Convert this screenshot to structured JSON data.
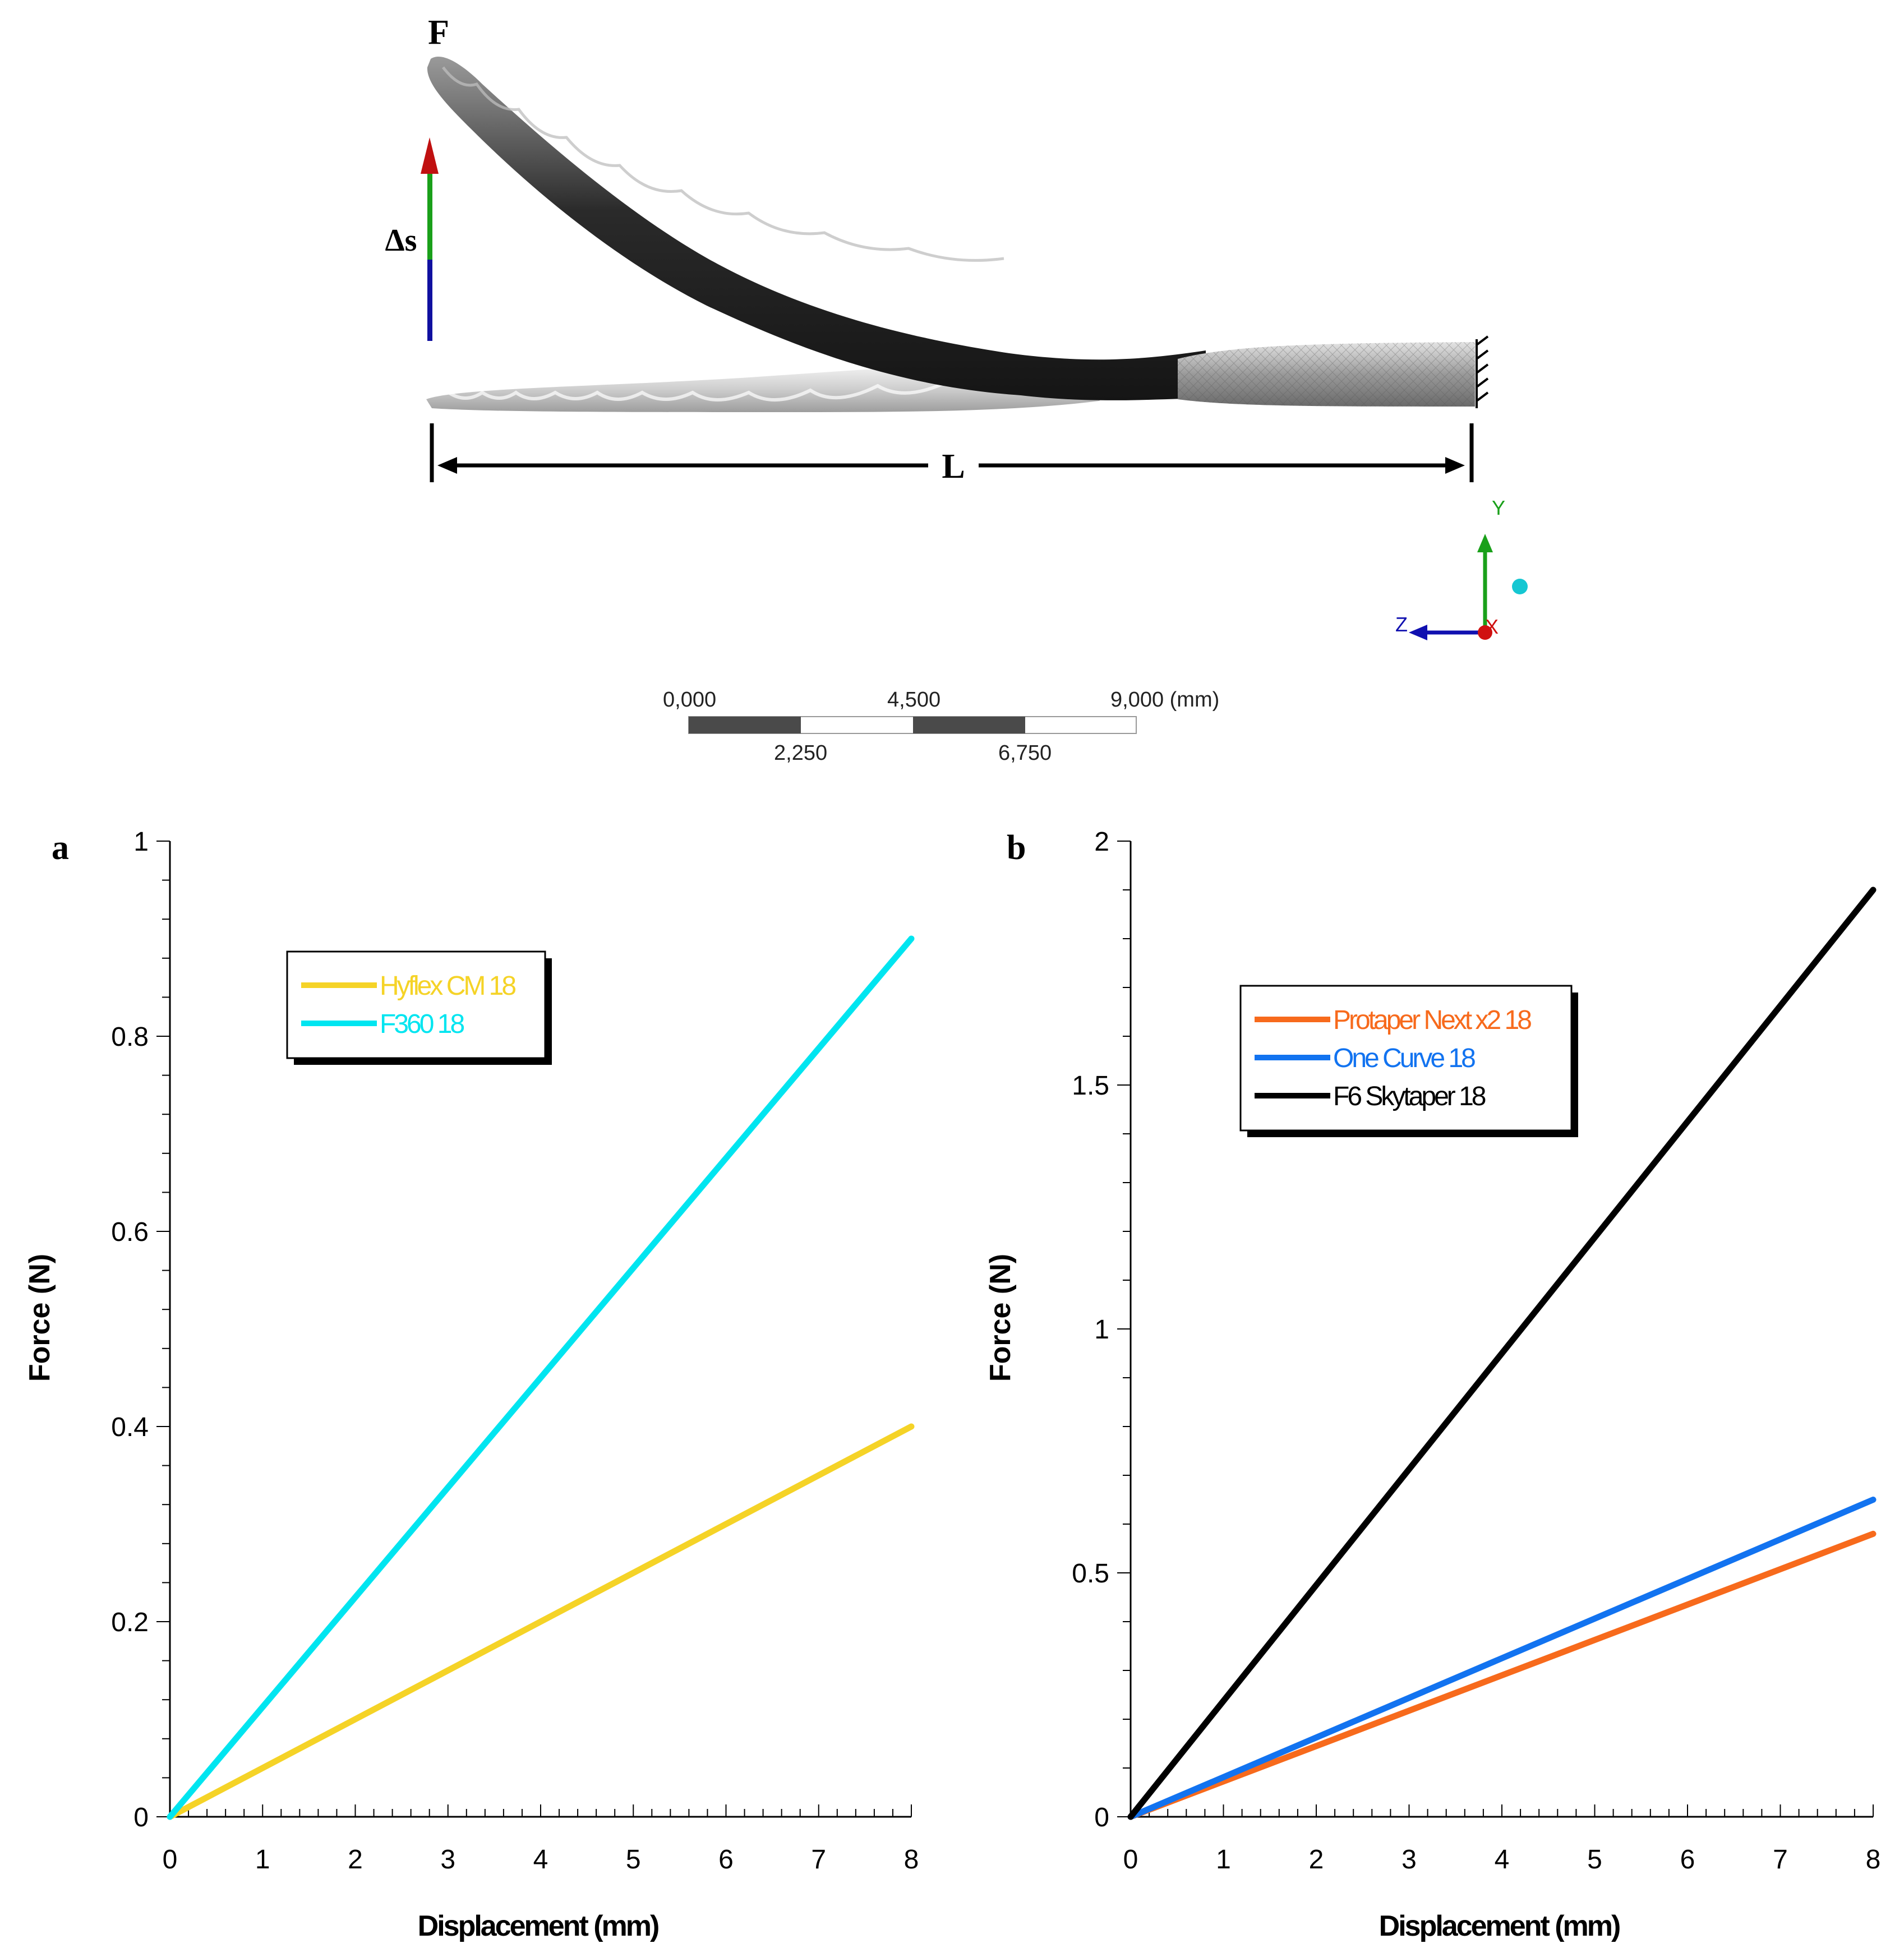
{
  "model": {
    "force_label": "F",
    "displacement_label": "Δs",
    "length_label": "L",
    "axis_labels": {
      "y": "Y",
      "z": "Z",
      "x": "X"
    },
    "scale_bar": {
      "top_labels": [
        "0,000",
        "4,500",
        "9,000 (mm)"
      ],
      "bottom_labels": [
        "2,250",
        "6,750"
      ]
    }
  },
  "chart_data": [
    {
      "panel": "a",
      "type": "line",
      "xlabel": "Displacement (mm)",
      "ylabel": "Force (N)",
      "xlim": [
        0,
        8
      ],
      "ylim": [
        0,
        1
      ],
      "xticks": [
        "0",
        "1",
        "2",
        "3",
        "4",
        "5",
        "6",
        "7",
        "8"
      ],
      "yticks": [
        "0",
        "0.2",
        "0.4",
        "0.6",
        "0.8",
        "1"
      ],
      "legend_position": "top-left",
      "series": [
        {
          "name": "Hyflex CM 18",
          "color": "#f5d327",
          "x": [
            0,
            8
          ],
          "y": [
            0,
            0.4
          ]
        },
        {
          "name": "F360 18",
          "color": "#00e5f0",
          "x": [
            0,
            8
          ],
          "y": [
            0,
            0.9
          ]
        }
      ]
    },
    {
      "panel": "b",
      "type": "line",
      "xlabel": "Displacement (mm)",
      "ylabel": "Force (N)",
      "xlim": [
        0,
        8
      ],
      "ylim": [
        0,
        2
      ],
      "xticks": [
        "0",
        "1",
        "2",
        "3",
        "4",
        "5",
        "6",
        "7",
        "8"
      ],
      "yticks": [
        "0",
        "0.5",
        "1",
        "1.5",
        "2"
      ],
      "legend_position": "top-left",
      "series": [
        {
          "name": "Protaper Next x2 18",
          "color": "#f76a1c",
          "x": [
            0,
            8
          ],
          "y": [
            0,
            0.58
          ]
        },
        {
          "name": "One Curve 18",
          "color": "#1273f0",
          "x": [
            0,
            8
          ],
          "y": [
            0,
            0.65
          ]
        },
        {
          "name": "F6 Skytaper 18",
          "color": "#000000",
          "x": [
            0,
            8
          ],
          "y": [
            0,
            1.9
          ]
        }
      ]
    }
  ]
}
